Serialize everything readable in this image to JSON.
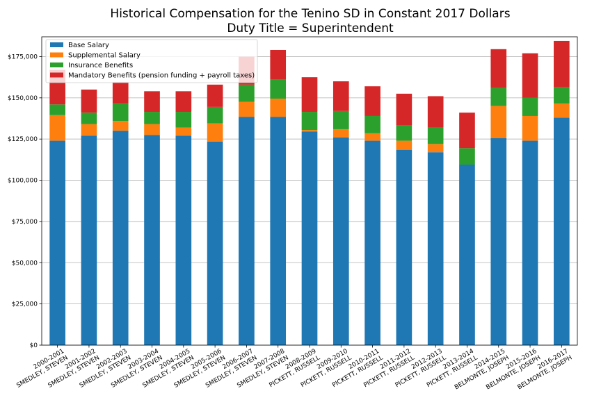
{
  "chart_data": {
    "type": "bar",
    "stacked": true,
    "title": "Historical Compensation for the Tenino SD in Constant 2017 Dollars",
    "subtitle": "Duty Title = Superintendent",
    "xlabel": "",
    "ylabel": "",
    "ylim": [
      0,
      187000
    ],
    "yticks": [
      0,
      25000,
      50000,
      75000,
      100000,
      125000,
      150000,
      175000
    ],
    "ytick_labels": [
      "$0",
      "$25,000",
      "$50,000",
      "$75,000",
      "$100,000",
      "$125,000",
      "$150,000",
      "$175,000"
    ],
    "grid": "horizontal",
    "legend_position": "top-left",
    "categories": [
      {
        "year": "2000-2001",
        "name": "SMEDLEY, STEVEN"
      },
      {
        "year": "2001-2002",
        "name": "SMEDLEY, STEVEN"
      },
      {
        "year": "2002-2003",
        "name": "SMEDLEY, STEVEN"
      },
      {
        "year": "2003-2004",
        "name": "SMEDLEY, STEVEN"
      },
      {
        "year": "2004-2005",
        "name": "SMEDLEY, STEVEN"
      },
      {
        "year": "2005-2006",
        "name": "SMEDLEY, STEVEN"
      },
      {
        "year": "2006-2007",
        "name": "SMEDLEY, STEVEN"
      },
      {
        "year": "2007-2008",
        "name": "SMEDLEY, STEVEN"
      },
      {
        "year": "2008-2009",
        "name": "PICKETT, RUSSELL"
      },
      {
        "year": "2009-2010",
        "name": "PICKETT, RUSSELL"
      },
      {
        "year": "2010-2011",
        "name": "PICKETT, RUSSELL"
      },
      {
        "year": "2011-2012",
        "name": "PICKETT, RUSSELL"
      },
      {
        "year": "2012-2013",
        "name": "PICKETT, RUSSELL"
      },
      {
        "year": "2013-2014",
        "name": "PICKETT, RUSSELL"
      },
      {
        "year": "2014-2015",
        "name": "BELMONTE, JOSEPH"
      },
      {
        "year": "2015-2016",
        "name": "BELMONTE, JOSEPH"
      },
      {
        "year": "2016-2017",
        "name": "BELMONTE, JOSEPH"
      }
    ],
    "series": [
      {
        "name": "Base Salary",
        "color": "#1f77b4",
        "values": [
          124000,
          127000,
          130000,
          127500,
          127000,
          123500,
          138500,
          138500,
          129500,
          126000,
          124000,
          118500,
          117000,
          109500,
          125500,
          124000,
          138000
        ]
      },
      {
        "name": "Supplemental Salary",
        "color": "#ff7f0e",
        "values": [
          15500,
          7000,
          6000,
          6500,
          5000,
          11000,
          9000,
          11000,
          1000,
          5000,
          4500,
          5500,
          5000,
          0,
          19500,
          15000,
          8500
        ]
      },
      {
        "name": "Insurance Benefits",
        "color": "#2ca02c",
        "values": [
          6500,
          7000,
          10500,
          7500,
          9500,
          10000,
          10500,
          11500,
          11000,
          11000,
          10500,
          9500,
          10000,
          10000,
          11000,
          11000,
          10000
        ]
      },
      {
        "name": "Mandatory Benefits (pension funding + payroll taxes)",
        "color": "#d62728",
        "values": [
          21000,
          14000,
          13000,
          12500,
          12500,
          13500,
          17000,
          18000,
          21000,
          18000,
          18000,
          19000,
          19000,
          21500,
          23500,
          27000,
          28000
        ]
      }
    ]
  }
}
